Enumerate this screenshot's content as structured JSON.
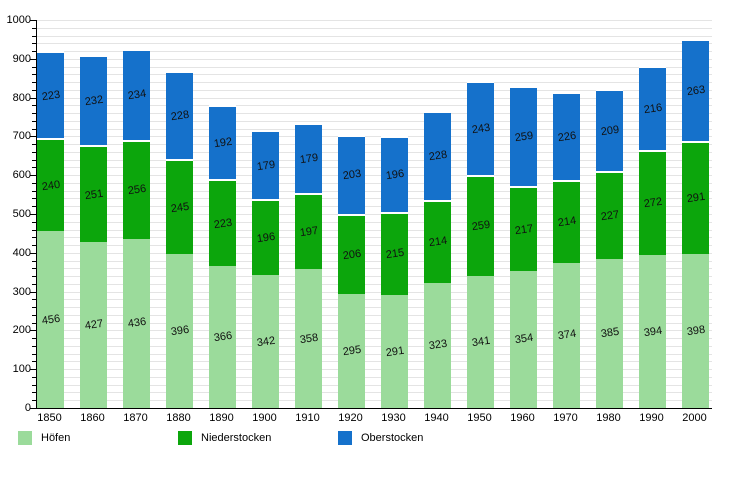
{
  "chart_data": {
    "type": "bar",
    "stacked": true,
    "title": "",
    "xlabel": "",
    "ylabel": "",
    "categories": [
      "1850",
      "1860",
      "1870",
      "1880",
      "1890",
      "1900",
      "1910",
      "1920",
      "1930",
      "1940",
      "1950",
      "1960",
      "1970",
      "1980",
      "1990",
      "2000"
    ],
    "series": [
      {
        "name": "Höfen",
        "color": "#9BDB9B",
        "values": [
          456,
          427,
          436,
          396,
          366,
          342,
          358,
          295,
          291,
          323,
          341,
          354,
          374,
          385,
          394,
          398
        ]
      },
      {
        "name": "Niederstocken",
        "color": "#0CA60C",
        "values": [
          240,
          251,
          256,
          245,
          223,
          196,
          197,
          206,
          215,
          214,
          259,
          217,
          214,
          227,
          272,
          291
        ]
      },
      {
        "name": "Oberstocken",
        "color": "#1571CB",
        "values": [
          223,
          232,
          234,
          228,
          192,
          179,
          179,
          203,
          196,
          228,
          243,
          259,
          226,
          209,
          216,
          263
        ]
      }
    ],
    "ylim": [
      0,
      1000
    ],
    "y_ticks": [
      "0",
      "100",
      "200",
      "300",
      "400",
      "500",
      "600",
      "700",
      "800",
      "900",
      "1000"
    ],
    "y_minor_step": 20,
    "grid": true,
    "grid_color": "#e4e4e4",
    "axis_color": "#000000",
    "value_label_color": "#111111",
    "legend_position": "bottom"
  }
}
